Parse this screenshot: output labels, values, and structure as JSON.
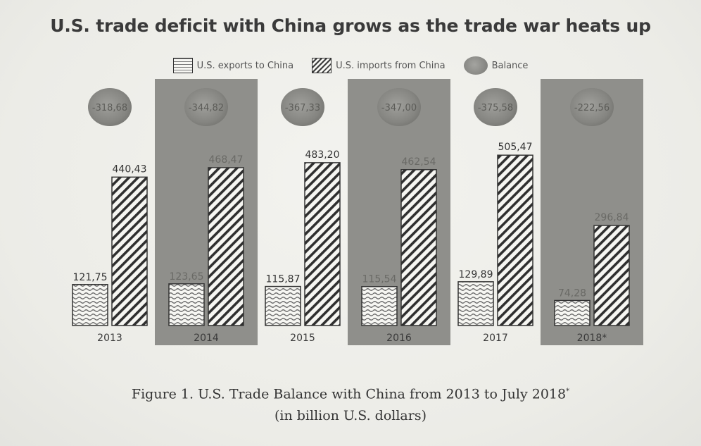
{
  "chart_data": {
    "type": "bar",
    "title": "U.S. trade deficit with China grows as the trade war heats up",
    "categories": [
      "2013",
      "2014",
      "2015",
      "2016",
      "2017",
      "2018*"
    ],
    "series": [
      {
        "name": "U.S. exports to China",
        "values": [
          121.75,
          123.65,
          115.87,
          115.54,
          129.89,
          74.28
        ],
        "labels": [
          "121,75",
          "123,65",
          "115,87",
          "115,54",
          "129,89",
          "74,28"
        ]
      },
      {
        "name": "U.S. imports from China",
        "values": [
          440.43,
          468.47,
          483.2,
          462.54,
          505.47,
          296.84
        ],
        "labels": [
          "440,43",
          "468,47",
          "483,20",
          "462,54",
          "505,47",
          "296,84"
        ]
      },
      {
        "name": "Balance",
        "values": [
          -318.68,
          -344.82,
          -367.33,
          -347.0,
          -375.58,
          -222.56
        ],
        "labels": [
          "-318,68",
          "-344,82",
          "-367,33",
          "-347,00",
          "-375,58",
          "-222,56"
        ]
      }
    ],
    "ylim": [
      0,
      560
    ],
    "shaded_categories": [
      "2014",
      "2016",
      "2018*"
    ],
    "legend_position": "top-center",
    "grid": false,
    "xlabel": "",
    "ylabel": ""
  },
  "caption": {
    "line1": "Figure 1. U.S. Trade Balance with China from 2013 to July 2018",
    "line1_mark": "*",
    "line2": "(in billion U.S. dollars)"
  },
  "colors": {
    "shaded_panel": "#8f8f8b",
    "balance_circle": "#8a8a86",
    "bar_border": "#333333",
    "hatch": "#3a3a3a"
  }
}
